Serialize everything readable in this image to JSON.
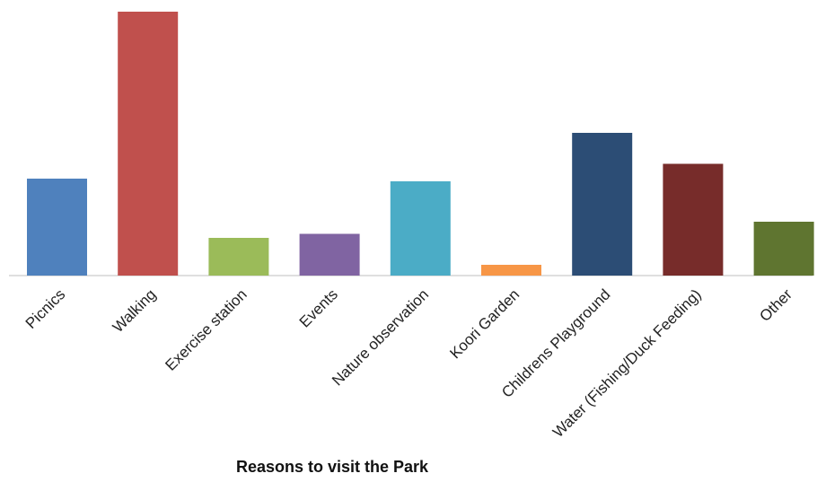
{
  "chart_data": {
    "type": "bar",
    "title": "",
    "xlabel": "Reasons to visit the Park",
    "ylabel": "",
    "categories": [
      "Picnics",
      "Walking",
      "Exercise station",
      "Events",
      "Nature observation",
      "Koori Garden",
      "Childrens Playground",
      "Water (Fishing/Duck Feeding)",
      "Other"
    ],
    "values": [
      36,
      98,
      14,
      15.5,
      35,
      4,
      53,
      41.5,
      20
    ],
    "ylim": [
      0,
      100
    ],
    "colors": [
      "#4F81BD",
      "#C0504D",
      "#9BBB59",
      "#8064A2",
      "#4BACC6",
      "#F79646",
      "#2C4D75",
      "#772C2A",
      "#5F7530"
    ],
    "grid": false,
    "legend": "none"
  }
}
